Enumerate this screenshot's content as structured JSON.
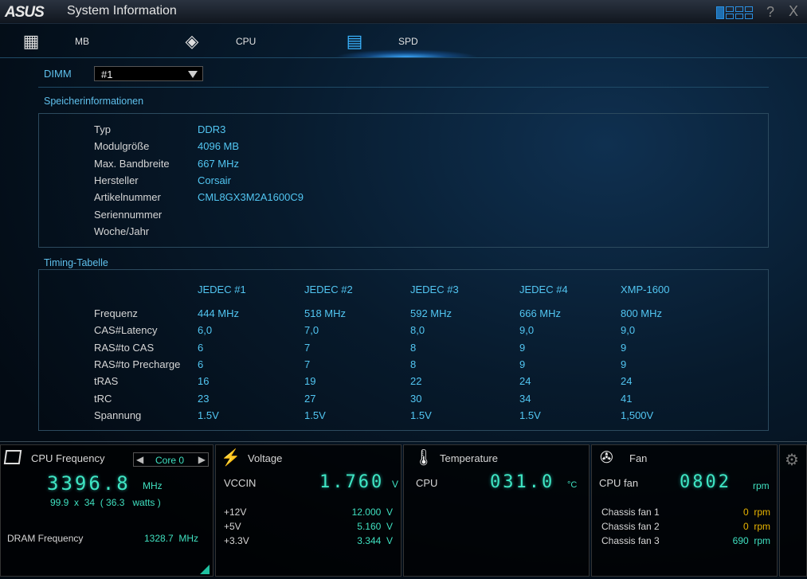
{
  "window": {
    "logo": "ASUS",
    "title": "System Information",
    "help": "?",
    "close": "X"
  },
  "tabs": [
    {
      "label": "MB",
      "icon": "motherboard-icon"
    },
    {
      "label": "CPU",
      "icon": "cpu-icon"
    },
    {
      "label": "SPD",
      "icon": "memory-icon",
      "active": true
    }
  ],
  "dimm": {
    "label": "DIMM",
    "selected": "#1"
  },
  "memory_info": {
    "title": "Speicherinformationen",
    "rows": [
      {
        "label": "Typ",
        "value": "DDR3"
      },
      {
        "label": "Modulgröße",
        "value": "4096 MB"
      },
      {
        "label": "Max. Bandbreite",
        "value": "667 MHz"
      },
      {
        "label": "Hersteller",
        "value": "Corsair"
      },
      {
        "label": "Artikelnummer",
        "value": "CML8GX3M2A1600C9"
      },
      {
        "label": "Seriennummer",
        "value": ""
      },
      {
        "label": "Woche/Jahr",
        "value": ""
      }
    ]
  },
  "timing": {
    "title": "Timing-Tabelle",
    "headers": [
      "JEDEC #1",
      "JEDEC #2",
      "JEDEC #3",
      "JEDEC #4",
      "XMP-1600"
    ],
    "rows": [
      {
        "label": "Frequenz",
        "values": [
          "444 MHz",
          "518 MHz",
          "592 MHz",
          "666 MHz",
          "800 MHz"
        ]
      },
      {
        "label": "CAS#Latency",
        "values": [
          "6,0",
          "7,0",
          "8,0",
          "9,0",
          "9,0"
        ]
      },
      {
        "label": "RAS#to CAS",
        "values": [
          "6",
          "7",
          "8",
          "9",
          "9"
        ]
      },
      {
        "label": "RAS#to Precharge",
        "values": [
          "6",
          "7",
          "8",
          "9",
          "9"
        ]
      },
      {
        "label": "tRAS",
        "values": [
          "16",
          "19",
          "22",
          "24",
          "24"
        ]
      },
      {
        "label": "tRC",
        "values": [
          "23",
          "27",
          "30",
          "34",
          "41"
        ]
      },
      {
        "label": "Spannung",
        "values": [
          "1.5V",
          "1.5V",
          "1.5V",
          "1.5V",
          "1,500V"
        ]
      }
    ]
  },
  "cpu_freq": {
    "title": "CPU Frequency",
    "core": "Core 0",
    "value": "3396.8",
    "unit": "MHz",
    "detail": "99.9  x  34  ( 36.3   watts )",
    "dram_label": "DRAM Frequency",
    "dram_value": "1328.7  MHz"
  },
  "voltage": {
    "title": "Voltage",
    "main_label": "VCCIN",
    "main_value": "1.760",
    "main_unit": "V",
    "rows": [
      {
        "label": "+12V",
        "value": "12.000  V"
      },
      {
        "label": "+5V",
        "value": "5.160  V"
      },
      {
        "label": "+3.3V",
        "value": "3.344  V"
      }
    ]
  },
  "temperature": {
    "title": "Temperature",
    "label": "CPU",
    "value": "031.0",
    "unit": "°C"
  },
  "fan": {
    "title": "Fan",
    "main_label": "CPU fan",
    "main_value": "0802",
    "main_unit": "rpm",
    "rows": [
      {
        "label": "Chassis fan 1",
        "value": "0  rpm",
        "status": "warning"
      },
      {
        "label": "Chassis fan 2",
        "value": "0  rpm",
        "status": "warning"
      },
      {
        "label": "Chassis fan 3",
        "value": "690  rpm",
        "status": "ok"
      }
    ]
  },
  "colors": {
    "accent": "#52c6f2",
    "digits": "#3fe6c4",
    "warning": "#e8b400"
  }
}
